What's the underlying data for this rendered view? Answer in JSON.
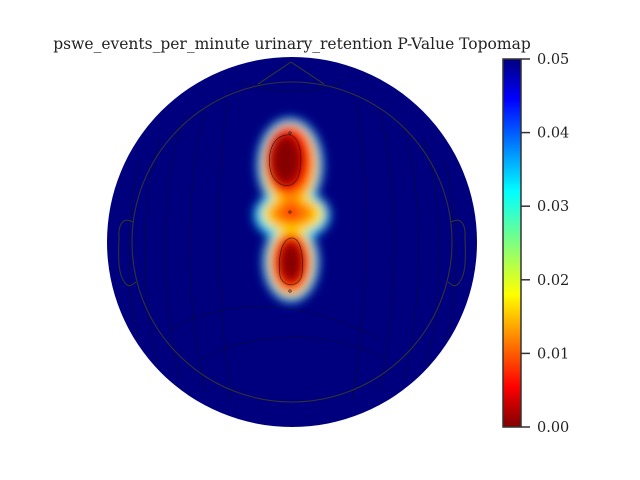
{
  "chart_data": {
    "type": "heatmap",
    "subtype": "eeg-topomap",
    "title": "pswe_events_per_minute urinary_retention P-Value Topomap",
    "xlabel": "",
    "ylabel": "",
    "colormap": "jet",
    "colorbar": {
      "range": [
        0.0,
        0.05
      ],
      "ticks": [
        0.0,
        0.01,
        0.02,
        0.03,
        0.04,
        0.05
      ],
      "tick_labels": [
        "0.00",
        "0.01",
        "0.02",
        "0.03",
        "0.04",
        "0.05"
      ]
    },
    "background_value": 0.05,
    "significant_regions": [
      {
        "location": "frontal-midline",
        "min_p": 0.0
      },
      {
        "location": "central-midline",
        "min_p": 0.01
      },
      {
        "location": "parietal-midline",
        "min_p": 0.0
      }
    ],
    "colors": {
      "low": "#800000",
      "high": "#00007f",
      "outline": "#333333"
    }
  }
}
